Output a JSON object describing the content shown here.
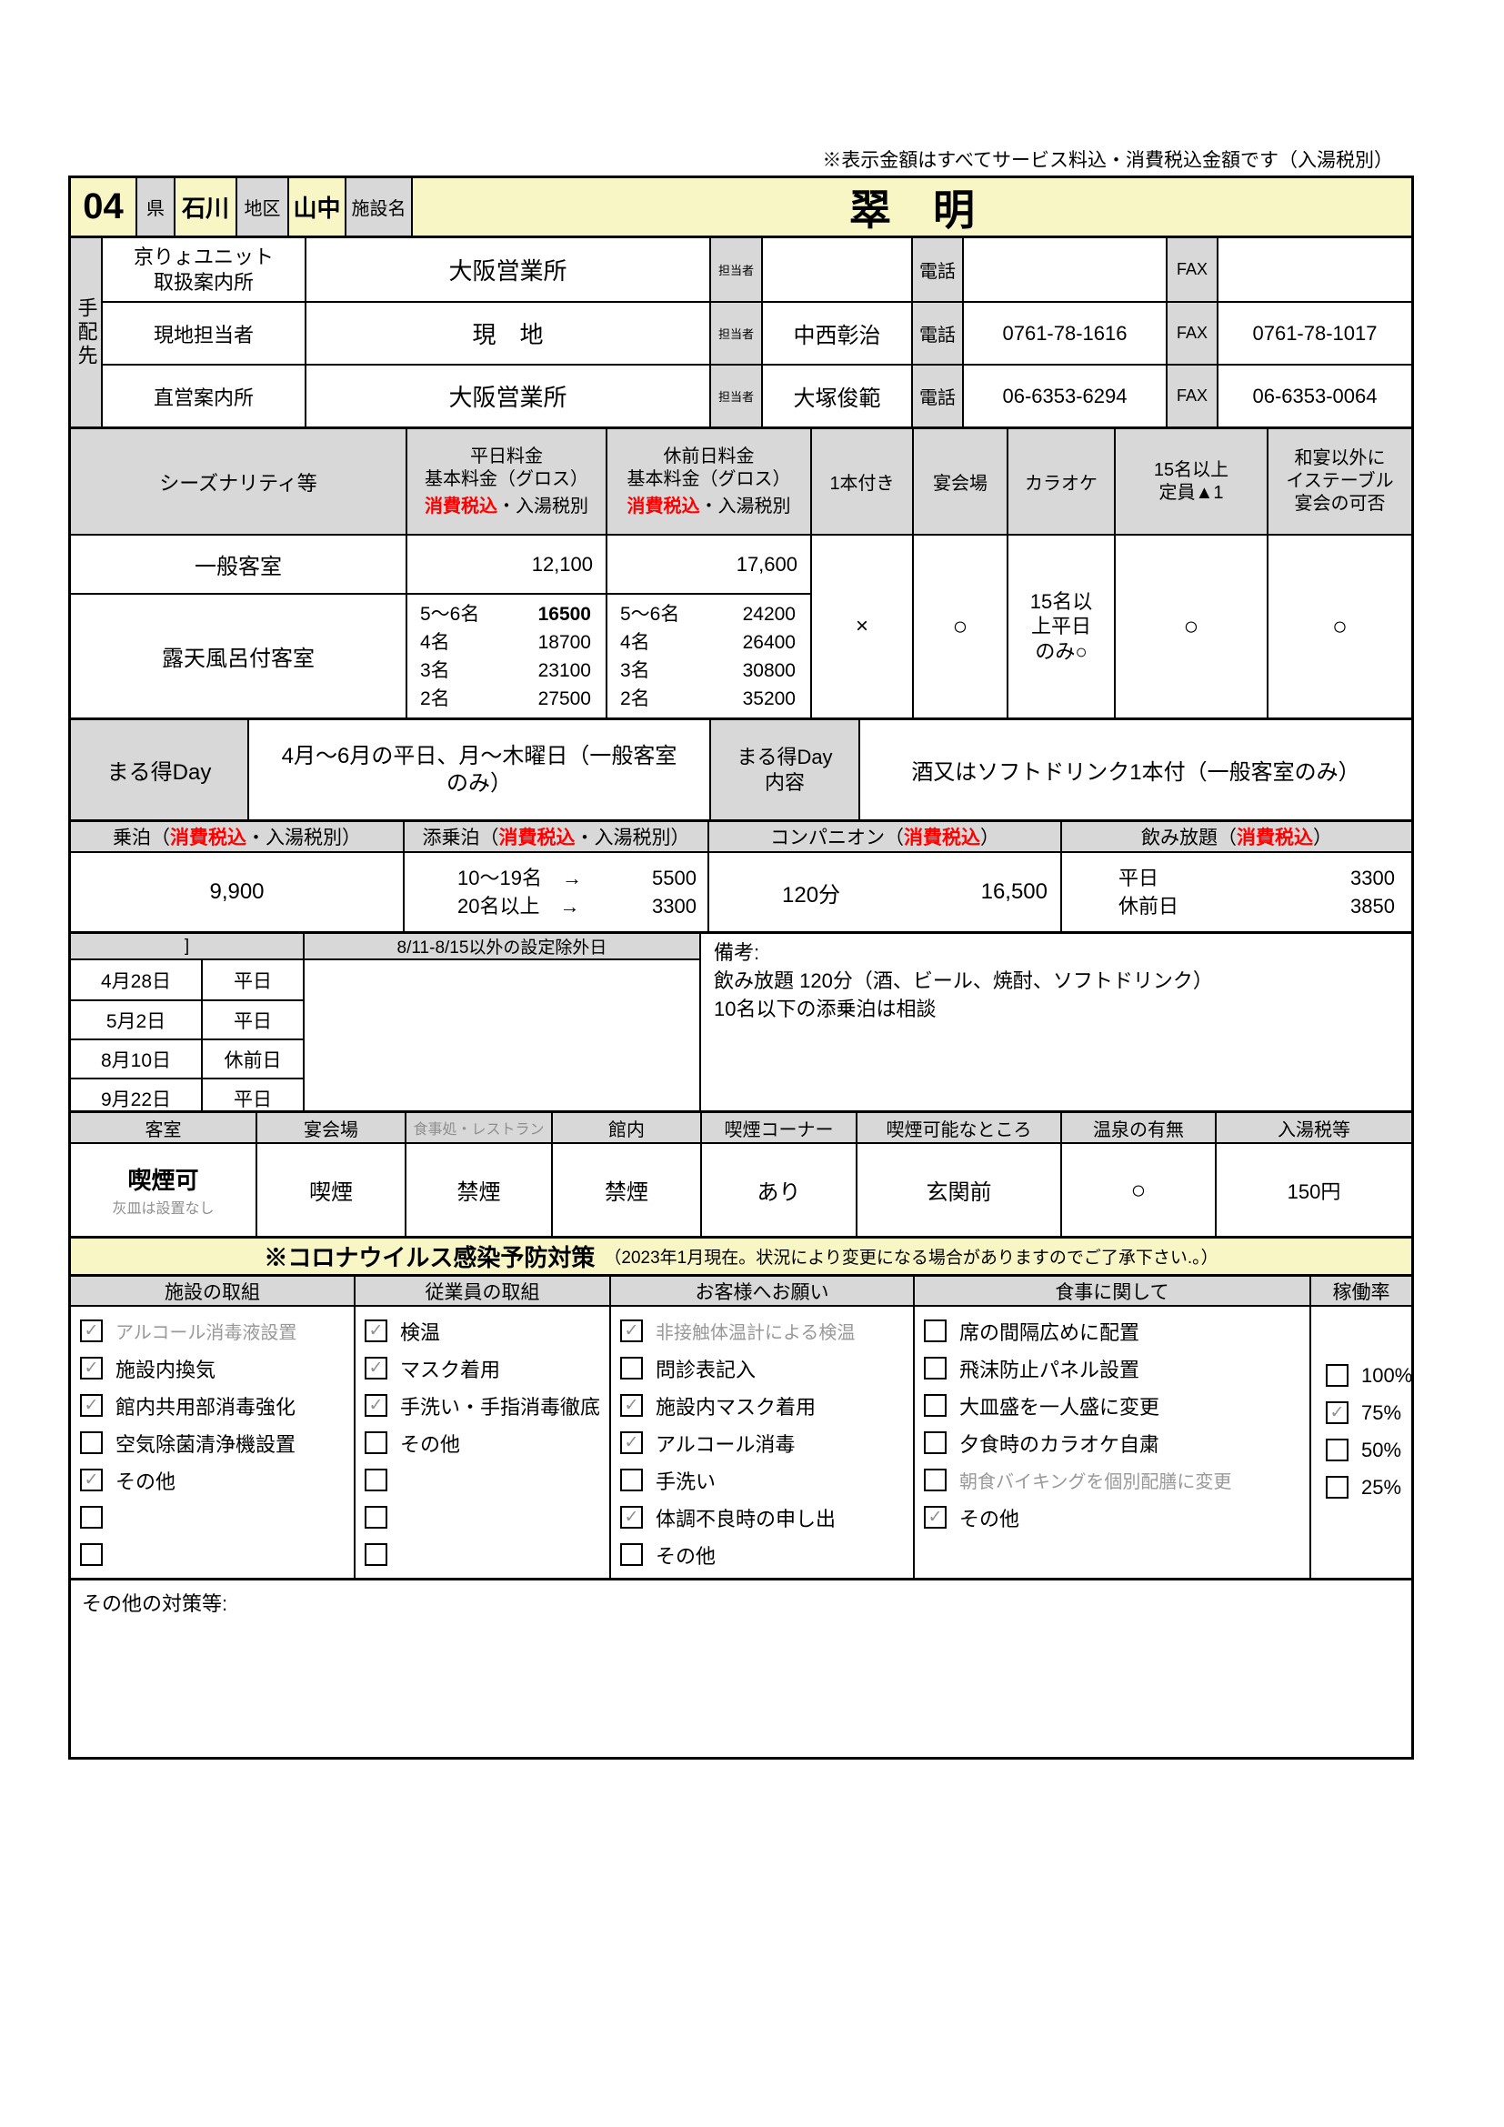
{
  "page": {
    "note_top": "※表示金額はすべてサービス料込・消費税込金額です（入湯税別）"
  },
  "header": {
    "number": "04",
    "pref_label": "県",
    "pref": "石川",
    "district_label": "地区",
    "district": "山中",
    "facility_label": "施設名",
    "facility_name": "翠　明"
  },
  "tehai": {
    "side_label": "手配先",
    "tanto_label": "担当者",
    "tel_label": "電話",
    "fax_label": "FAX",
    "rows": [
      {
        "label": "京りょユニット\n取扱案内所",
        "value": "大阪営業所",
        "tanto": "",
        "tel": "",
        "fax": ""
      },
      {
        "label": "現地担当者",
        "value": "現　地",
        "tanto": "中西彰治",
        "tel": "0761-78-1616",
        "fax": "0761-78-1017"
      },
      {
        "label": "直営案内所",
        "value": "大阪営業所",
        "tanto": "大塚俊範",
        "tel": "06-6353-6294",
        "fax": "06-6353-0064"
      }
    ]
  },
  "pricing": {
    "season_header": "シーズナリティ等",
    "weekday_header": "平日料金\n基本料金（グロス）",
    "preholiday_header": "休前日料金\n基本料金（グロス）",
    "tax_red": "消費税込",
    "tax_black": "・入湯税別",
    "bottle_header": "1本付き",
    "banquet_header": "宴会場",
    "karaoke_header": "カラオケ",
    "capacity_header": "15名以上\n定員▲1",
    "table_banquet_header": "和宴以外に\nイステーブル\n宴会の可否",
    "general_room": {
      "name": "一般客室",
      "weekday": "12,100",
      "preholiday": "17,600"
    },
    "open_air_room": {
      "name": "露天風呂付客室",
      "weekday_lines": [
        {
          "p": "5～6名",
          "v": "16500",
          "bold": true
        },
        {
          "p": "4名",
          "v": "18700"
        },
        {
          "p": "3名",
          "v": "23100"
        },
        {
          "p": "2名",
          "v": "27500"
        }
      ],
      "preholiday_lines": [
        {
          "p": "5～6名",
          "v": "24200"
        },
        {
          "p": "4名",
          "v": "26400"
        },
        {
          "p": "3名",
          "v": "30800"
        },
        {
          "p": "2名",
          "v": "35200"
        }
      ]
    },
    "bottle_mark": "×",
    "banquet_mark": "○",
    "karaoke_mark": "15名以\n上平日\nのみ○",
    "capacity_mark": "○",
    "table_banquet_mark": "○"
  },
  "marutoku": {
    "label": "まる得Day",
    "value": "4月～6月の平日、月～木曜日（一般客室\nのみ）",
    "content_label": "まる得Day\n内容",
    "content": "酒又はソフトドリンク1本付（一般客室のみ）"
  },
  "rates": {
    "noripaku": {
      "h_pre": "乗泊（",
      "h_red": "消費税込",
      "h_suf": "・入湯税別）",
      "value": "9,900"
    },
    "tenjo": {
      "h_pre": "添乗泊（",
      "h_red": "消費税込",
      "h_suf": "・入湯税別）",
      "lines": [
        {
          "p": "10～19名　→",
          "v": "5500"
        },
        {
          "p": "20名以上　→",
          "v": "3300"
        }
      ]
    },
    "companion": {
      "h_pre": "コンパニオン（",
      "h_red": "消費税込",
      "h_suf": "）",
      "duration": "120分",
      "value": "16,500"
    },
    "nomihodai": {
      "h_pre": "飲み放題（",
      "h_red": "消費税込",
      "h_suf": "）",
      "lines": [
        {
          "p": "平日",
          "v": "3300"
        },
        {
          "p": "休前日",
          "v": "3850"
        }
      ]
    }
  },
  "exclusions": {
    "bracket": "]",
    "header": "8/11-8/15以外の設定除外日",
    "dates": [
      {
        "d": "4月28日",
        "t": "平日"
      },
      {
        "d": "5月2日",
        "t": "平日"
      },
      {
        "d": "8月10日",
        "t": "休前日"
      },
      {
        "d": "9月22日",
        "t": "平日"
      }
    ],
    "biko_label": "備考:",
    "biko_line1": "飲み放題 120分（酒、ビール、焼酎、ソフトドリンク）",
    "biko_line2": "10名以下の添乗泊は相談"
  },
  "smoking": {
    "h_room": "客室",
    "h_banquet": "宴会場",
    "h_restaurant": "食事処・レストラン",
    "h_building": "館内",
    "h_corner": "喫煙コーナー",
    "h_place": "喫煙可能なところ",
    "h_onsen": "温泉の有無",
    "h_tax": "入湯税等",
    "room_main": "喫煙可",
    "room_sub": "灰皿は設置なし",
    "banquet": "喫煙",
    "restaurant": "禁煙",
    "building": "禁煙",
    "corner": "あり",
    "place": "玄関前",
    "onsen": "○",
    "tax": "150円"
  },
  "covid": {
    "title": "※コロナウイルス感染予防対策",
    "title_note": "（2023年1月現在。状況により変更になる場合がありますのでご了承下さい.。）",
    "columns": [
      {
        "header": "施設の取組",
        "items": [
          {
            "check": "✓",
            "label": "アルコール消毒液設置",
            "gray": true
          },
          {
            "check": "✓",
            "label": "施設内換気"
          },
          {
            "check": "✓",
            "label": "館内共用部消毒強化"
          },
          {
            "check": "",
            "label": "空気除菌清浄機設置"
          },
          {
            "check": "✓",
            "label": "その他"
          },
          {
            "check": "",
            "label": ""
          },
          {
            "check": "",
            "label": ""
          }
        ]
      },
      {
        "header": "従業員の取組",
        "items": [
          {
            "check": "✓",
            "label": "検温"
          },
          {
            "check": "✓",
            "label": "マスク着用"
          },
          {
            "check": "✓",
            "label": "手洗い・手指消毒徹底"
          },
          {
            "check": "",
            "label": "その他"
          },
          {
            "check": "",
            "label": ""
          },
          {
            "check": "",
            "label": ""
          },
          {
            "check": "",
            "label": ""
          }
        ]
      },
      {
        "header": "お客様へお願い",
        "items": [
          {
            "check": "✓",
            "label": "非接触体温計による検温",
            "gray": true
          },
          {
            "check": "",
            "label": "問診表記入"
          },
          {
            "check": "✓",
            "label": "施設内マスク着用"
          },
          {
            "check": "✓",
            "label": "アルコール消毒"
          },
          {
            "check": "",
            "label": "手洗い"
          },
          {
            "check": "✓",
            "label": "体調不良時の申し出"
          },
          {
            "check": "",
            "label": "その他"
          }
        ]
      },
      {
        "header": "食事に関して",
        "items": [
          {
            "check": "",
            "label": "席の間隔広めに配置"
          },
          {
            "check": "",
            "label": "飛沫防止パネル設置"
          },
          {
            "check": "",
            "label": "大皿盛を一人盛に変更"
          },
          {
            "check": "",
            "label": "夕食時のカラオケ自粛"
          },
          {
            "check": "",
            "label": "朝食バイキングを個別配膳に変更",
            "gray": true
          },
          {
            "check": "✓",
            "label": "その他"
          }
        ]
      }
    ],
    "occupancy": {
      "header": "稼働率",
      "items": [
        {
          "check": "",
          "label": "100%"
        },
        {
          "check": "✓",
          "label": "75%"
        },
        {
          "check": "",
          "label": "50%"
        },
        {
          "check": "",
          "label": "25%"
        }
      ]
    }
  },
  "other": {
    "label": "その他の対策等:"
  }
}
